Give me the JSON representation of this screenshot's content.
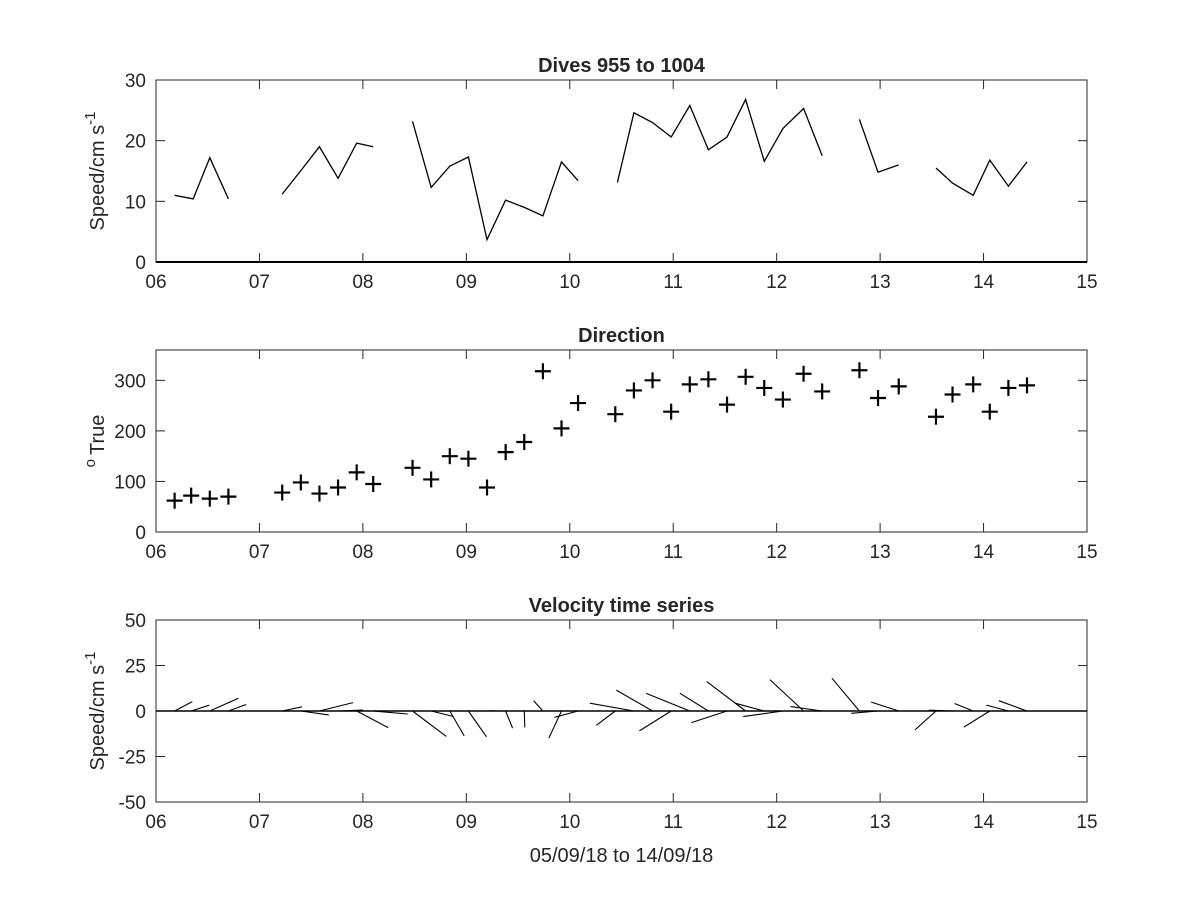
{
  "chart_data": [
    {
      "panel": "speed",
      "type": "line",
      "title": "Dives 955 to 1004",
      "ylabel": "Speed/cm s",
      "ylabel_exp": "-1",
      "xlabel": "",
      "xlim": [
        6,
        15
      ],
      "ylim": [
        0,
        30
      ],
      "xticks": [
        "06",
        "07",
        "08",
        "09",
        "10",
        "11",
        "12",
        "13",
        "14",
        "15"
      ],
      "yticks": [
        0,
        10,
        20,
        30
      ],
      "grid": false,
      "segments": [
        [
          [
            6.18,
            11.0
          ],
          [
            6.36,
            10.4
          ],
          [
            6.52,
            17.2
          ],
          [
            6.7,
            10.4
          ]
        ],
        [
          [
            7.22,
            11.2
          ],
          [
            7.42,
            15.5
          ],
          [
            7.58,
            19.0
          ],
          [
            7.76,
            13.8
          ],
          [
            7.94,
            19.6
          ],
          [
            8.1,
            19.0
          ]
        ],
        [
          [
            8.48,
            23.2
          ],
          [
            8.66,
            12.3
          ],
          [
            8.84,
            15.8
          ],
          [
            9.02,
            17.3
          ],
          [
            9.2,
            3.7
          ],
          [
            9.38,
            10.2
          ],
          [
            9.56,
            9.0
          ],
          [
            9.74,
            7.6
          ],
          [
            9.92,
            16.5
          ],
          [
            10.08,
            13.4
          ]
        ],
        [
          [
            10.46,
            13.1
          ],
          [
            10.62,
            24.6
          ],
          [
            10.8,
            23.0
          ],
          [
            10.98,
            20.6
          ],
          [
            11.16,
            25.8
          ],
          [
            11.34,
            18.5
          ],
          [
            11.52,
            20.6
          ],
          [
            11.7,
            26.8
          ],
          [
            11.88,
            16.6
          ],
          [
            12.06,
            22.0
          ],
          [
            12.26,
            25.3
          ],
          [
            12.44,
            17.5
          ]
        ],
        [
          [
            12.8,
            23.5
          ],
          [
            12.98,
            14.8
          ],
          [
            13.18,
            16.0
          ]
        ],
        [
          [
            13.54,
            15.5
          ],
          [
            13.7,
            13.0
          ],
          [
            13.9,
            11.0
          ],
          [
            14.06,
            16.8
          ],
          [
            14.24,
            12.5
          ],
          [
            14.42,
            16.5
          ]
        ]
      ]
    },
    {
      "panel": "direction",
      "type": "scatter",
      "title": "Direction",
      "ylabel": "True",
      "ylabel_prefix": "o",
      "xlabel": "",
      "xlim": [
        6,
        15
      ],
      "ylim": [
        0,
        360
      ],
      "xticks": [
        "06",
        "07",
        "08",
        "09",
        "10",
        "11",
        "12",
        "13",
        "14",
        "15"
      ],
      "yticks": [
        0,
        100,
        200,
        300
      ],
      "grid": false,
      "marker": "+",
      "points": [
        [
          6.18,
          62
        ],
        [
          6.34,
          72
        ],
        [
          6.52,
          66
        ],
        [
          6.7,
          70
        ],
        [
          7.22,
          78
        ],
        [
          7.4,
          98
        ],
        [
          7.58,
          76
        ],
        [
          7.76,
          88
        ],
        [
          7.94,
          118
        ],
        [
          8.1,
          95
        ],
        [
          8.48,
          127
        ],
        [
          8.66,
          104
        ],
        [
          8.84,
          150
        ],
        [
          9.02,
          145
        ],
        [
          9.2,
          88
        ],
        [
          9.38,
          158
        ],
        [
          9.56,
          178
        ],
        [
          9.74,
          318
        ],
        [
          9.92,
          205
        ],
        [
          10.08,
          255
        ],
        [
          10.44,
          233
        ],
        [
          10.62,
          280
        ],
        [
          10.8,
          300
        ],
        [
          10.98,
          238
        ],
        [
          11.16,
          292
        ],
        [
          11.34,
          302
        ],
        [
          11.52,
          252
        ],
        [
          11.7,
          307
        ],
        [
          11.88,
          285
        ],
        [
          12.06,
          262
        ],
        [
          12.26,
          313
        ],
        [
          12.44,
          278
        ],
        [
          12.8,
          320
        ],
        [
          12.98,
          265
        ],
        [
          13.18,
          288
        ],
        [
          13.54,
          228
        ],
        [
          13.7,
          272
        ],
        [
          13.9,
          292
        ],
        [
          14.06,
          238
        ],
        [
          14.24,
          285
        ],
        [
          14.42,
          290
        ]
      ]
    },
    {
      "panel": "velocity",
      "type": "quiver",
      "title": "Velocity time series",
      "ylabel": "Speed/cm s",
      "ylabel_exp": "-1",
      "xlabel": "05/09/18 to 14/09/18",
      "xlim": [
        6,
        15
      ],
      "ylim": [
        -50,
        50
      ],
      "xticks": [
        "06",
        "07",
        "08",
        "09",
        "10",
        "11",
        "12",
        "13",
        "14",
        "15"
      ],
      "yticks": [
        "50",
        "25",
        "0",
        "-25",
        "-50"
      ],
      "ytick_values": [
        50,
        25,
        0,
        -25,
        -50
      ],
      "grid": false,
      "vectors": [
        [
          6.18,
          11.0,
          62
        ],
        [
          6.34,
          10.4,
          72
        ],
        [
          6.52,
          17.2,
          66
        ],
        [
          6.7,
          10.4,
          70
        ],
        [
          7.22,
          11.2,
          78
        ],
        [
          7.4,
          15.5,
          98
        ],
        [
          7.58,
          19.0,
          76
        ],
        [
          7.76,
          13.8,
          88
        ],
        [
          7.94,
          19.6,
          118
        ],
        [
          8.1,
          19.0,
          95
        ],
        [
          8.48,
          23.2,
          127
        ],
        [
          8.66,
          12.3,
          104
        ],
        [
          8.84,
          15.8,
          150
        ],
        [
          9.02,
          17.3,
          145
        ],
        [
          9.2,
          3.7,
          88
        ],
        [
          9.38,
          10.2,
          158
        ],
        [
          9.56,
          9.0,
          178
        ],
        [
          9.74,
          7.6,
          318
        ],
        [
          9.92,
          16.5,
          205
        ],
        [
          10.08,
          13.4,
          255
        ],
        [
          10.44,
          13.1,
          233
        ],
        [
          10.62,
          24.6,
          280
        ],
        [
          10.8,
          23.0,
          300
        ],
        [
          10.98,
          20.6,
          238
        ],
        [
          11.16,
          25.8,
          292
        ],
        [
          11.34,
          18.5,
          302
        ],
        [
          11.52,
          20.6,
          252
        ],
        [
          11.7,
          26.8,
          307
        ],
        [
          11.88,
          16.6,
          285
        ],
        [
          12.06,
          22.0,
          262
        ],
        [
          12.26,
          25.3,
          313
        ],
        [
          12.44,
          17.5,
          278
        ],
        [
          12.8,
          23.5,
          320
        ],
        [
          12.98,
          14.8,
          265
        ],
        [
          13.18,
          16.0,
          288
        ],
        [
          13.54,
          15.5,
          228
        ],
        [
          13.7,
          13.0,
          272
        ],
        [
          13.9,
          11.0,
          292
        ],
        [
          14.06,
          16.8,
          238
        ],
        [
          14.24,
          12.5,
          285
        ],
        [
          14.42,
          16.5,
          290
        ]
      ]
    }
  ]
}
